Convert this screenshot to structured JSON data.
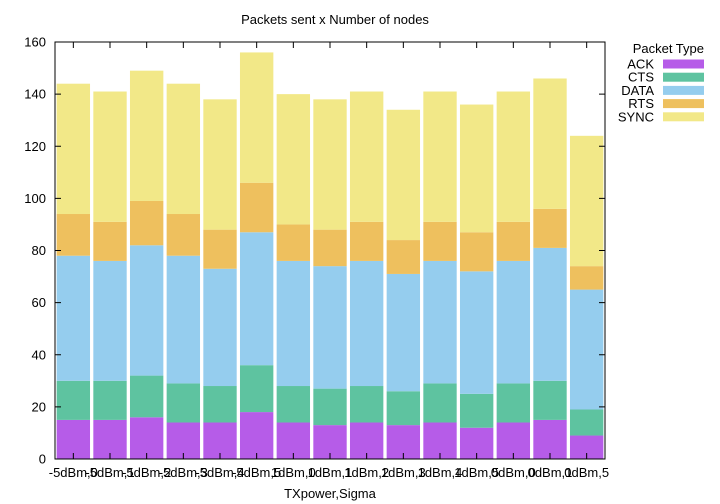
{
  "chart_data": {
    "type": "bar",
    "stacked": true,
    "title": "Packets sent x Number of nodes",
    "xlabel": "TXpower,Sigma",
    "ylabel": "",
    "ylim": [
      0,
      160
    ],
    "yticks": [
      0,
      20,
      40,
      60,
      80,
      100,
      120,
      140,
      160
    ],
    "grid": false,
    "legend_title": "Packet Type",
    "legend_position": "outside-top-right",
    "categories": [
      "-5dBm,0",
      "-5dBm,1",
      "-5dBm,2",
      "-5dBm,3",
      "-5dBm,4",
      "-5dBm,5",
      "1dBm,0",
      "1dBm,1",
      "1dBm,2",
      "1dBm,3",
      "1dBm,4",
      "1dBm,5",
      "0dBm,0",
      "0dBm,1",
      "0dBm,5"
    ],
    "series": [
      {
        "name": "ACK",
        "color": "#b65ce8",
        "values": [
          15,
          15,
          16,
          14,
          14,
          18,
          14,
          13,
          14,
          13,
          14,
          12,
          14,
          15,
          9
        ]
      },
      {
        "name": "CTS",
        "color": "#5ec3a0",
        "values": [
          15,
          15,
          16,
          15,
          14,
          18,
          14,
          14,
          14,
          13,
          15,
          13,
          15,
          15,
          10
        ]
      },
      {
        "name": "DATA",
        "color": "#95cdee",
        "values": [
          48,
          46,
          50,
          49,
          45,
          51,
          48,
          47,
          48,
          45,
          47,
          47,
          47,
          51,
          46
        ]
      },
      {
        "name": "RTS",
        "color": "#eec05e",
        "values": [
          16,
          15,
          17,
          16,
          15,
          19,
          14,
          14,
          15,
          13,
          15,
          15,
          15,
          15,
          9
        ]
      },
      {
        "name": "SYNC",
        "color": "#f2e888",
        "values": [
          50,
          50,
          50,
          50,
          50,
          50,
          50,
          50,
          50,
          50,
          50,
          49,
          50,
          50,
          50
        ]
      }
    ]
  }
}
